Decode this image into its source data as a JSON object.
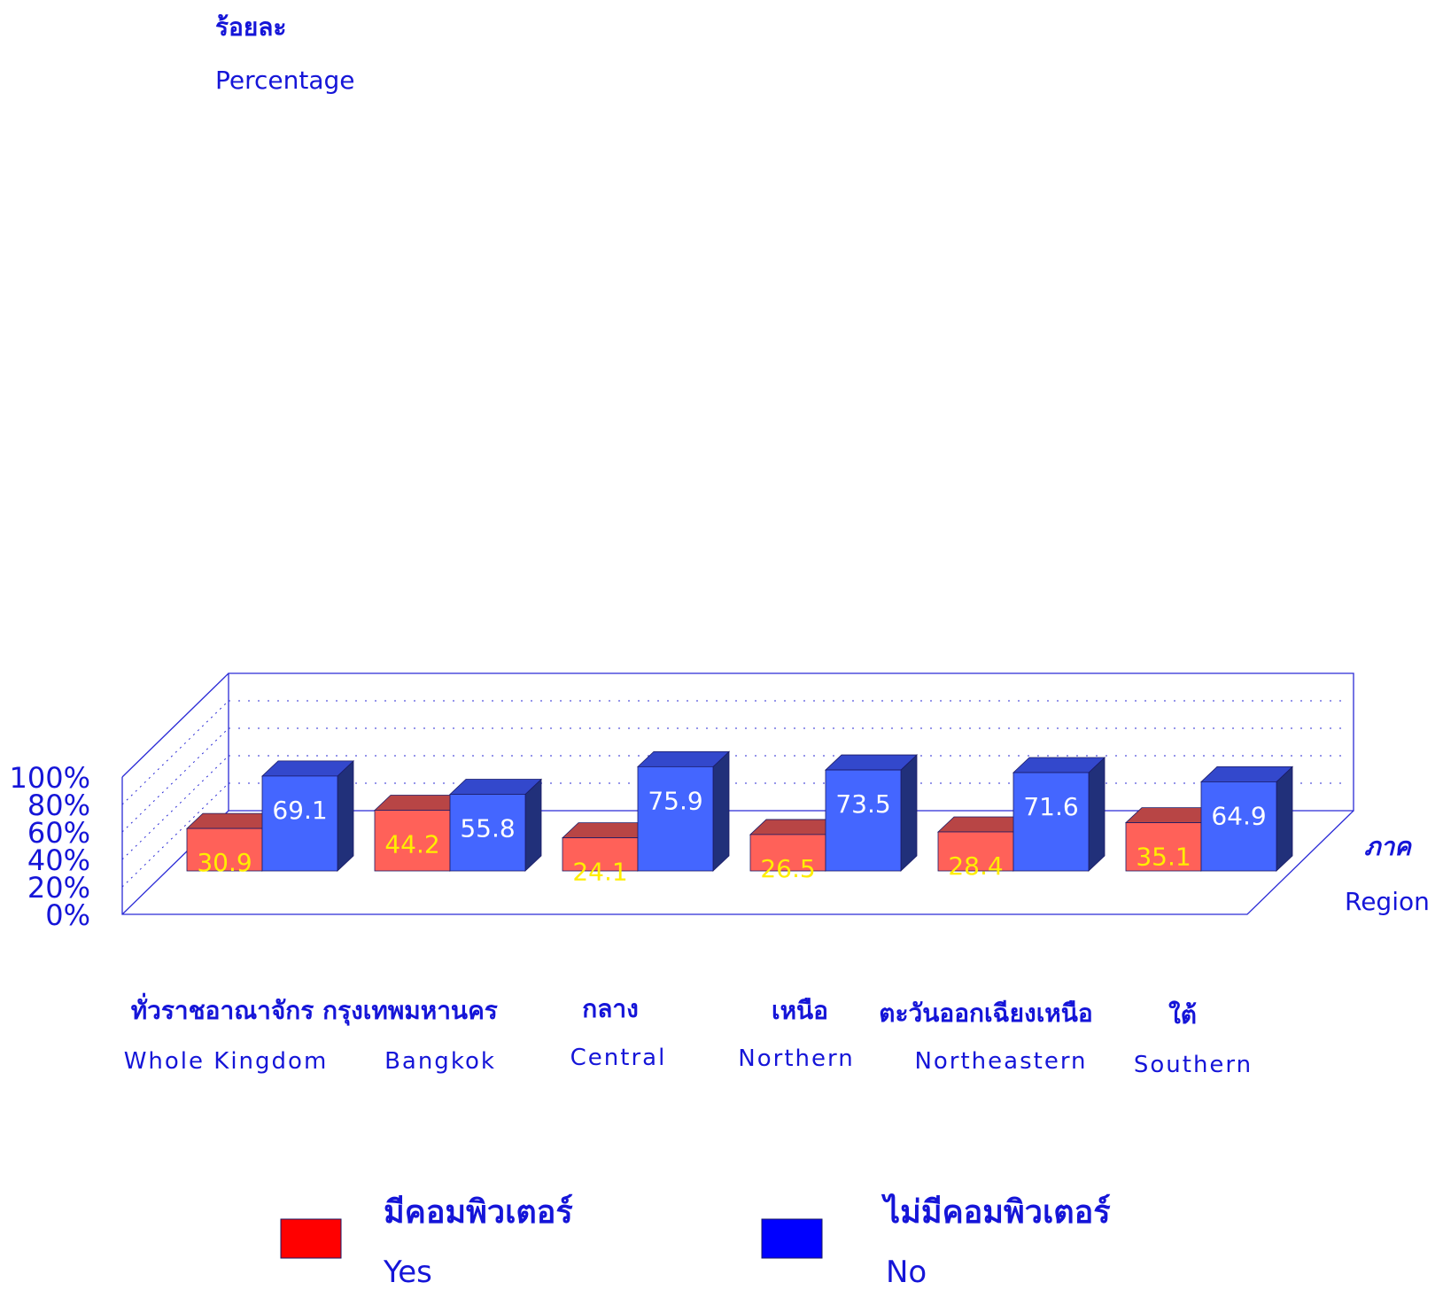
{
  "chart_data": {
    "type": "bar",
    "y_title_th": "ร้อยละ",
    "y_title_en": "Percentage",
    "x_title_th": "ภาค",
    "x_title_en": "Region",
    "ylim": [
      0,
      100
    ],
    "y_ticks": [
      "0%",
      "20%",
      "40%",
      "60%",
      "80%",
      "100%"
    ],
    "grid": "dotted horizontal",
    "categories": [
      {
        "th": "ทั่วราชอาณาจักร",
        "en": "Whole  Kingdom"
      },
      {
        "th": "กรุงเทพมหานคร",
        "en": "Bangkok"
      },
      {
        "th": "กลาง",
        "en": "Central"
      },
      {
        "th": "เหนือ",
        "en": "Northern"
      },
      {
        "th": "ตะวันออกเฉียงเหนือ",
        "en": "Northeastern"
      },
      {
        "th": "ใต้",
        "en": "Southern"
      }
    ],
    "series": [
      {
        "name_th": "มีคอมพิวเตอร์",
        "name_en": "Yes",
        "values": [
          30.9,
          44.2,
          24.1,
          26.5,
          28.4,
          35.1
        ],
        "value_labels": [
          "30.9",
          "44.2",
          "24.1",
          "26.5",
          "28.4",
          "35.1"
        ]
      },
      {
        "name_th": "ไม่มีคอมพิวเตอร์",
        "name_en": "No",
        "values": [
          69.1,
          55.8,
          75.9,
          73.5,
          71.6,
          64.9
        ],
        "value_labels": [
          "69.1",
          "55.8",
          "75.9",
          "73.5",
          "71.6",
          "64.9"
        ]
      }
    ],
    "legend_position": "bottom"
  },
  "colors": {
    "text": "#1515d8",
    "axis": "#2b2bd6",
    "yes_front": "#ff6159",
    "yes_top": "#b84545",
    "yes_side": "#8a2f2f",
    "yes_label": "#ffee00",
    "yes_legend": "#ff0000",
    "no_front": "#4466ff",
    "no_top": "#3348cc",
    "no_side": "#21307a",
    "no_label": "#ffffff",
    "no_legend": "#0000ff"
  }
}
